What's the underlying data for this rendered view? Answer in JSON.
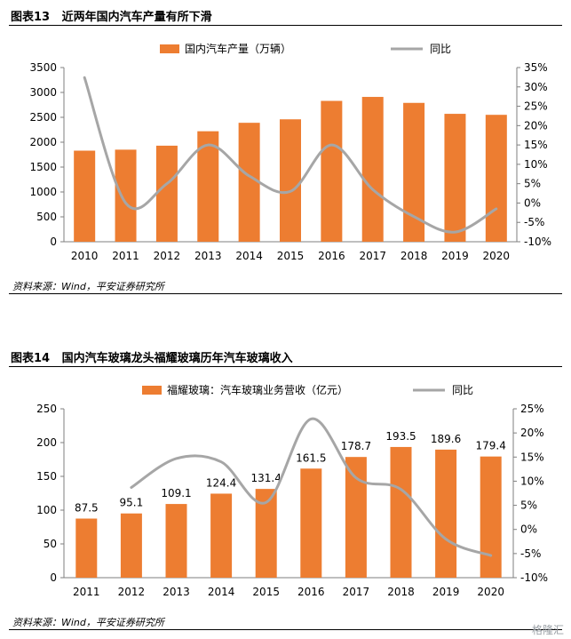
{
  "colors": {
    "bar": "#ED7D31",
    "line": "#A6A6A6",
    "axis": "#7F7F7F"
  },
  "charts": [
    {
      "title": "图表13   近两年国内汽车产量有所下滑",
      "source": "资料来源：Wind，平安证券研究所"
    },
    {
      "title": "图表14   国内汽车玻璃龙头福耀玻璃历年汽车玻璃收入",
      "source": "资料来源：Wind，平安证券研究所"
    }
  ],
  "watermark": "格隆汇",
  "chart_data": [
    {
      "type": "bar",
      "categories": [
        "2010",
        "2011",
        "2012",
        "2013",
        "2014",
        "2015",
        "2016",
        "2017",
        "2018",
        "2019",
        "2020"
      ],
      "series": [
        {
          "name": "国内汽车产量（万辆）",
          "type": "bar",
          "axis": "left",
          "values": [
            1830,
            1850,
            1930,
            2220,
            2390,
            2460,
            2830,
            2910,
            2790,
            2570,
            2550
          ]
        },
        {
          "name": "同比",
          "type": "line",
          "axis": "right",
          "values": [
            32.4,
            0.0,
            5.0,
            15.0,
            7.0,
            3.0,
            15.0,
            3.5,
            -3.5,
            -7.5,
            -1.5
          ]
        }
      ],
      "yleft": {
        "min": 0,
        "max": 3500,
        "ticks": [
          "0",
          "500",
          "1000",
          "1500",
          "2000",
          "2500",
          "3000",
          "3500"
        ]
      },
      "yright": {
        "min": -10,
        "max": 35,
        "ticks": [
          "-10%",
          "-5%",
          "0%",
          "5%",
          "10%",
          "15%",
          "20%",
          "25%",
          "30%",
          "35%"
        ]
      },
      "data_labels": false,
      "legend_position": "top",
      "grid": false
    },
    {
      "type": "bar",
      "categories": [
        "2011",
        "2012",
        "2013",
        "2014",
        "2015",
        "2016",
        "2017",
        "2018",
        "2019",
        "2020"
      ],
      "series": [
        {
          "name": "福耀玻璃：汽车玻璃业务营收（亿元）",
          "type": "bar",
          "axis": "left",
          "values": [
            87.5,
            95.1,
            109.1,
            124.4,
            131.4,
            161.5,
            178.7,
            193.5,
            189.6,
            179.4
          ],
          "labels": [
            "87.5",
            "95.1",
            "109.1",
            "124.4",
            "131.4",
            "161.5",
            "178.7",
            "193.5",
            "189.6",
            "179.4"
          ]
        },
        {
          "name": "同比",
          "type": "line",
          "axis": "right",
          "values": [
            null,
            8.7,
            14.7,
            14.0,
            5.6,
            22.9,
            10.7,
            8.3,
            -2.0,
            -5.4
          ]
        }
      ],
      "yleft": {
        "min": 0,
        "max": 250,
        "ticks": [
          "0",
          "50",
          "100",
          "150",
          "200",
          "250"
        ]
      },
      "yright": {
        "min": -10,
        "max": 25,
        "ticks": [
          "-10%",
          "-5%",
          "0%",
          "5%",
          "10%",
          "15%",
          "20%",
          "25%"
        ]
      },
      "data_labels": true,
      "legend_position": "top",
      "grid": false
    }
  ]
}
